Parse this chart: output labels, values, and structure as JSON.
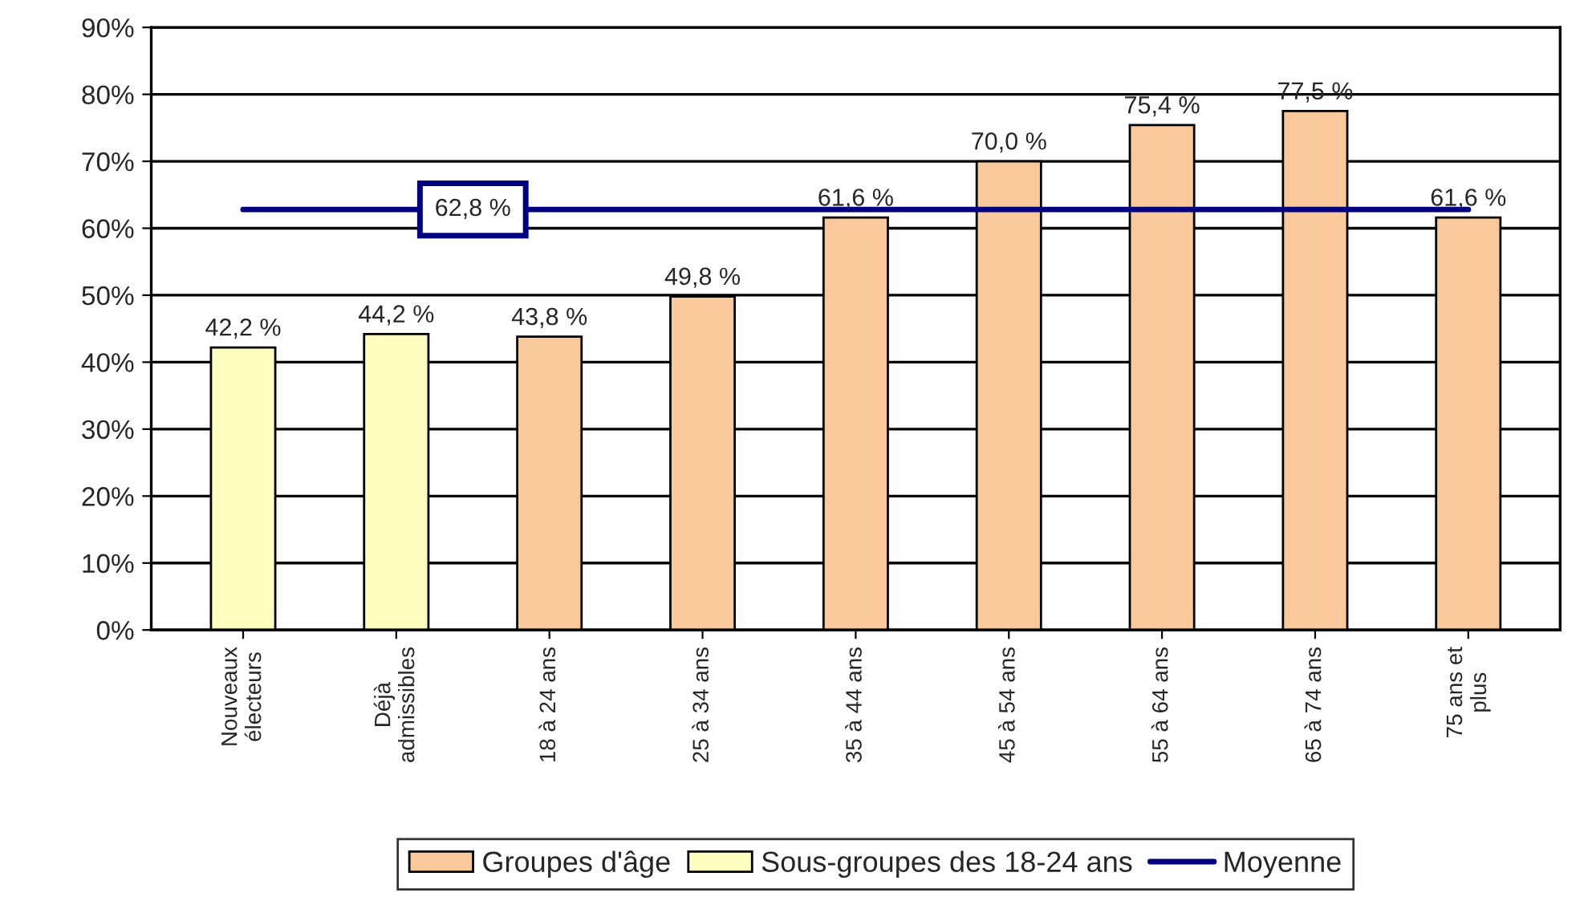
{
  "chart_data": {
    "type": "bar",
    "categories": [
      "Nouveaux\nélecteurs",
      "Déjà\nadmissibles",
      "18 à 24 ans",
      "25 à 34 ans",
      "35 à 44 ans",
      "45 à 54 ans",
      "55 à 64 ans",
      "65 à 74 ans",
      "75 ans et\nplus"
    ],
    "series": [
      {
        "name": "Groupes d'âge",
        "color": "#f9c89b",
        "values": [
          null,
          null,
          43.8,
          49.8,
          61.6,
          70.0,
          75.4,
          77.5,
          61.6
        ],
        "value_labels": [
          null,
          null,
          "43,8 %",
          "49,8 %",
          "61,6 %",
          "70,0 %",
          "75,4 %",
          "77,5 %",
          "61,6 %"
        ]
      },
      {
        "name": "Sous-groupes des 18-24 ans",
        "color": "#ffffc0",
        "values": [
          42.2,
          44.2,
          null,
          null,
          null,
          null,
          null,
          null,
          null
        ],
        "value_labels": [
          "42,2 %",
          "44,2 %",
          null,
          null,
          null,
          null,
          null,
          null,
          null
        ]
      },
      {
        "name": "Moyenne",
        "type": "line",
        "color": "#000080",
        "values": [
          62.8,
          62.8,
          62.8,
          62.8,
          62.8,
          62.8,
          62.8,
          62.8,
          62.8
        ],
        "value_labels": [
          null,
          null,
          "62,8 %",
          null,
          null,
          null,
          null,
          null,
          null
        ]
      }
    ],
    "ylim": [
      0,
      90
    ],
    "yticks": [
      {
        "value": 0,
        "label": "0%"
      },
      {
        "value": 10,
        "label": "10%"
      },
      {
        "value": 20,
        "label": "20%"
      },
      {
        "value": 30,
        "label": "30%"
      },
      {
        "value": 40,
        "label": "40%"
      },
      {
        "value": 50,
        "label": "50%"
      },
      {
        "value": 60,
        "label": "60%"
      },
      {
        "value": 70,
        "label": "70%"
      },
      {
        "value": 80,
        "label": "80%"
      },
      {
        "value": 90,
        "label": "90%"
      }
    ],
    "grid": "y",
    "legend": "bottom"
  }
}
